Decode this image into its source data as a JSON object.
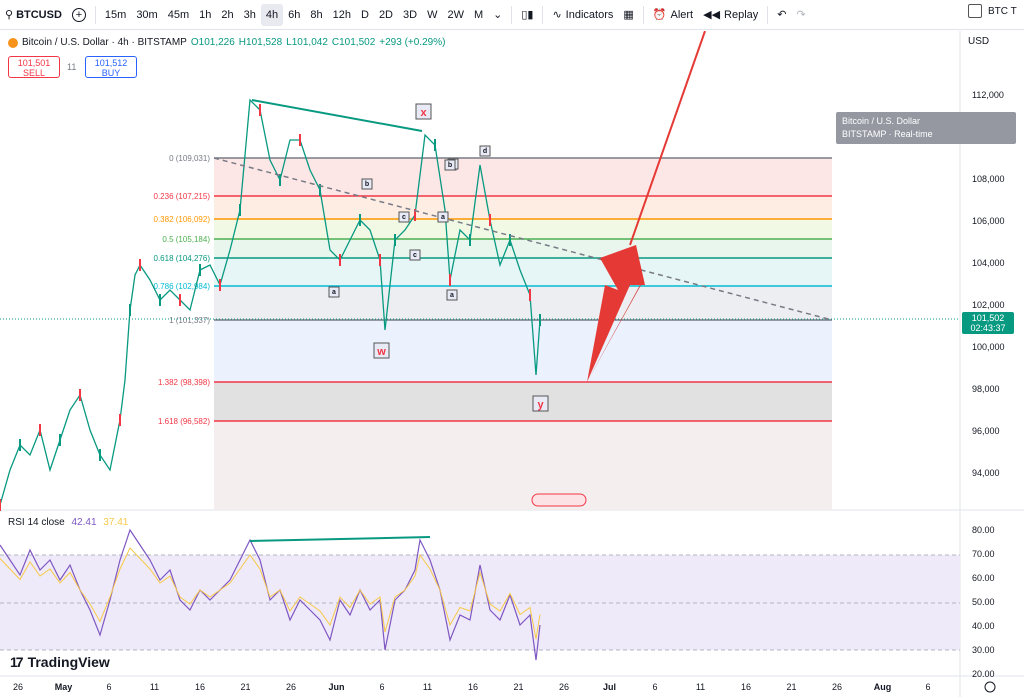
{
  "toolbar": {
    "symbol": "BTCUSD",
    "intervals": [
      "15m",
      "30m",
      "45m",
      "1h",
      "2h",
      "3h",
      "4h",
      "6h",
      "8h",
      "12h",
      "D",
      "2D",
      "3D",
      "W",
      "2W",
      "M"
    ],
    "active_interval": "4h",
    "indicators_label": "Indicators",
    "alert_label": "Alert",
    "replay_label": "Replay",
    "side_label": "BTC T"
  },
  "legend": {
    "title": "Bitcoin / U.S. Dollar · 4h · BITSTAMP",
    "open": "O101,226",
    "high": "H101,528",
    "low": "L101,042",
    "close": "C101,502",
    "change": "+293 (+0.29%)"
  },
  "trade": {
    "sell_price": "101,501",
    "sell_label": "SELL",
    "qty": "11",
    "buy_price": "101,512",
    "buy_label": "BUY"
  },
  "currency": "USD",
  "tooltip": {
    "line1": "Bitcoin / U.S. Dollar",
    "line2": "BITSTAMP · Real-time"
  },
  "last_price": {
    "price": "101,502",
    "countdown": "02:43:37"
  },
  "price_axis": [
    "112,000",
    "110,000",
    "108,000",
    "106,000",
    "104,000",
    "102,000",
    "100,000",
    "98,000",
    "96,000",
    "94,000"
  ],
  "fib_levels": [
    {
      "label": "0 (109,031)",
      "color": "#787b86"
    },
    {
      "label": "0.236 (107,215)",
      "color": "#f23645"
    },
    {
      "label": "0.382 (106,092)",
      "color": "#ff9800"
    },
    {
      "label": "0.5 (105,184)",
      "color": "#4caf50"
    },
    {
      "label": "0.618 (104,276)",
      "color": "#089981"
    },
    {
      "label": "0.786 (102,984)",
      "color": "#00bcd4"
    },
    {
      "label": "1 (101,337)",
      "color": "#787b86"
    },
    {
      "label": "1.382 (98,398)",
      "color": "#f23645"
    },
    {
      "label": "1.618 (96,582)",
      "color": "#f23645"
    }
  ],
  "wave_labels": [
    "x",
    "w",
    "y",
    "b",
    "a",
    "c",
    "e",
    "d",
    "b",
    "a",
    "c",
    "a",
    "b",
    "c"
  ],
  "rsi": {
    "title": "RSI 14 close",
    "value": "42.41",
    "ma_value": "37.41",
    "axis": [
      "80.00",
      "70.00",
      "60.00",
      "50.00",
      "40.00",
      "30.00",
      "20.00"
    ]
  },
  "time_axis": [
    "26",
    "May",
    "6",
    "11",
    "16",
    "21",
    "26",
    "Jun",
    "6",
    "11",
    "16",
    "21",
    "26",
    "Jul",
    "6",
    "11",
    "16",
    "21",
    "26",
    "Aug",
    "6"
  ],
  "brand": "TradingView",
  "colors": {
    "up": "#089981",
    "down": "#f23645",
    "rsi": "#7e57c2",
    "accent": "#2962ff"
  }
}
